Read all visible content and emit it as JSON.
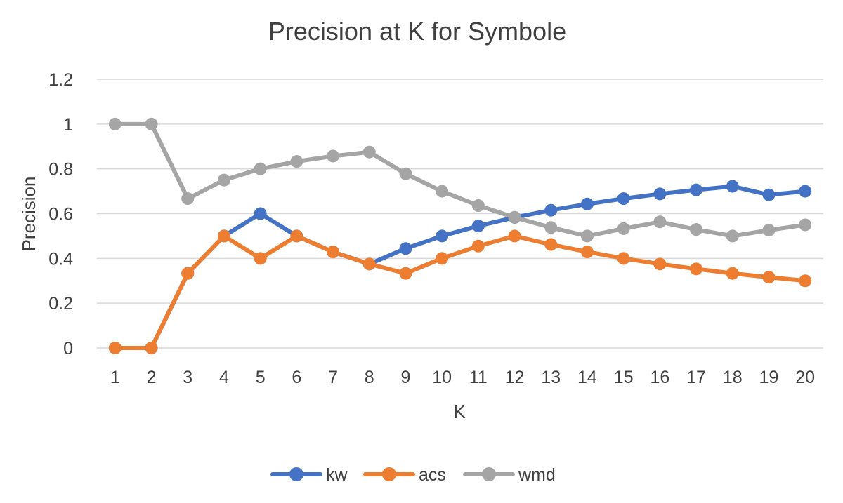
{
  "chart_data": {
    "type": "line",
    "title": "Precision at K for Symbole",
    "xlabel": "K",
    "ylabel": "Precision",
    "x": [
      1,
      2,
      3,
      4,
      5,
      6,
      7,
      8,
      9,
      10,
      11,
      12,
      13,
      14,
      15,
      16,
      17,
      18,
      19,
      20
    ],
    "ylim": [
      0,
      1.2
    ],
    "yticks": [
      0,
      0.2,
      0.4,
      0.6,
      0.8,
      1,
      1.2
    ],
    "ytick_labels": [
      "0",
      "0.2",
      "0.4",
      "0.6",
      "0.8",
      "1",
      "1.2"
    ],
    "grid": "horizontal",
    "legend_position": "bottom",
    "series": [
      {
        "name": "kw",
        "color": "#4472C4",
        "values": [
          0,
          0,
          0.333,
          0.5,
          0.6,
          0.5,
          0.429,
          0.375,
          0.444,
          0.5,
          0.545,
          0.583,
          0.615,
          0.643,
          0.667,
          0.688,
          0.706,
          0.722,
          0.684,
          0.7
        ]
      },
      {
        "name": "acs",
        "color": "#ED7D31",
        "values": [
          0,
          0,
          0.333,
          0.5,
          0.4,
          0.5,
          0.429,
          0.375,
          0.333,
          0.4,
          0.455,
          0.5,
          0.462,
          0.429,
          0.4,
          0.375,
          0.353,
          0.333,
          0.316,
          0.3
        ]
      },
      {
        "name": "wmd",
        "color": "#A5A5A5",
        "values": [
          1,
          1,
          0.667,
          0.75,
          0.8,
          0.833,
          0.857,
          0.875,
          0.778,
          0.7,
          0.636,
          0.583,
          0.538,
          0.5,
          0.533,
          0.563,
          0.529,
          0.5,
          0.526,
          0.55
        ]
      }
    ]
  }
}
